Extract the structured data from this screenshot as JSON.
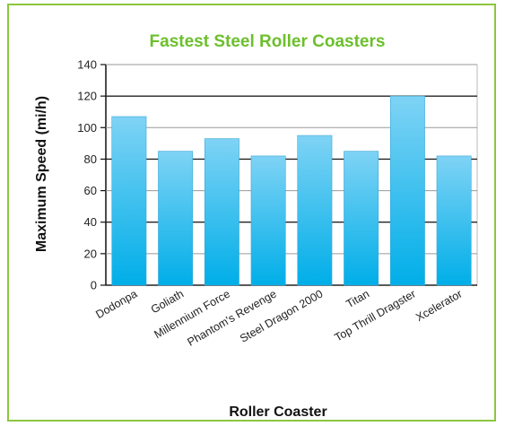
{
  "chart_data": {
    "type": "bar",
    "title": "Fastest Steel Roller Coasters",
    "xlabel": "Roller Coaster",
    "ylabel": "Maximum Speed (mi/h)",
    "categories": [
      "Dodonpa",
      "Goliath",
      "Millennium Force",
      "Phantom's Revenge",
      "Steel Dragon 2000",
      "Titan",
      "Top Thrill Dragster",
      "Xcelerator"
    ],
    "values": [
      107,
      85,
      93,
      82,
      95,
      85,
      120,
      82
    ],
    "ylim": [
      0,
      140
    ],
    "yticks": [
      0,
      20,
      40,
      60,
      80,
      100,
      120,
      140
    ],
    "grid": true,
    "colors": {
      "bar_top": "#7fd3f5",
      "bar_bottom": "#00aee8",
      "frame": "#8cc63f",
      "title": "#6cbf2c"
    }
  }
}
